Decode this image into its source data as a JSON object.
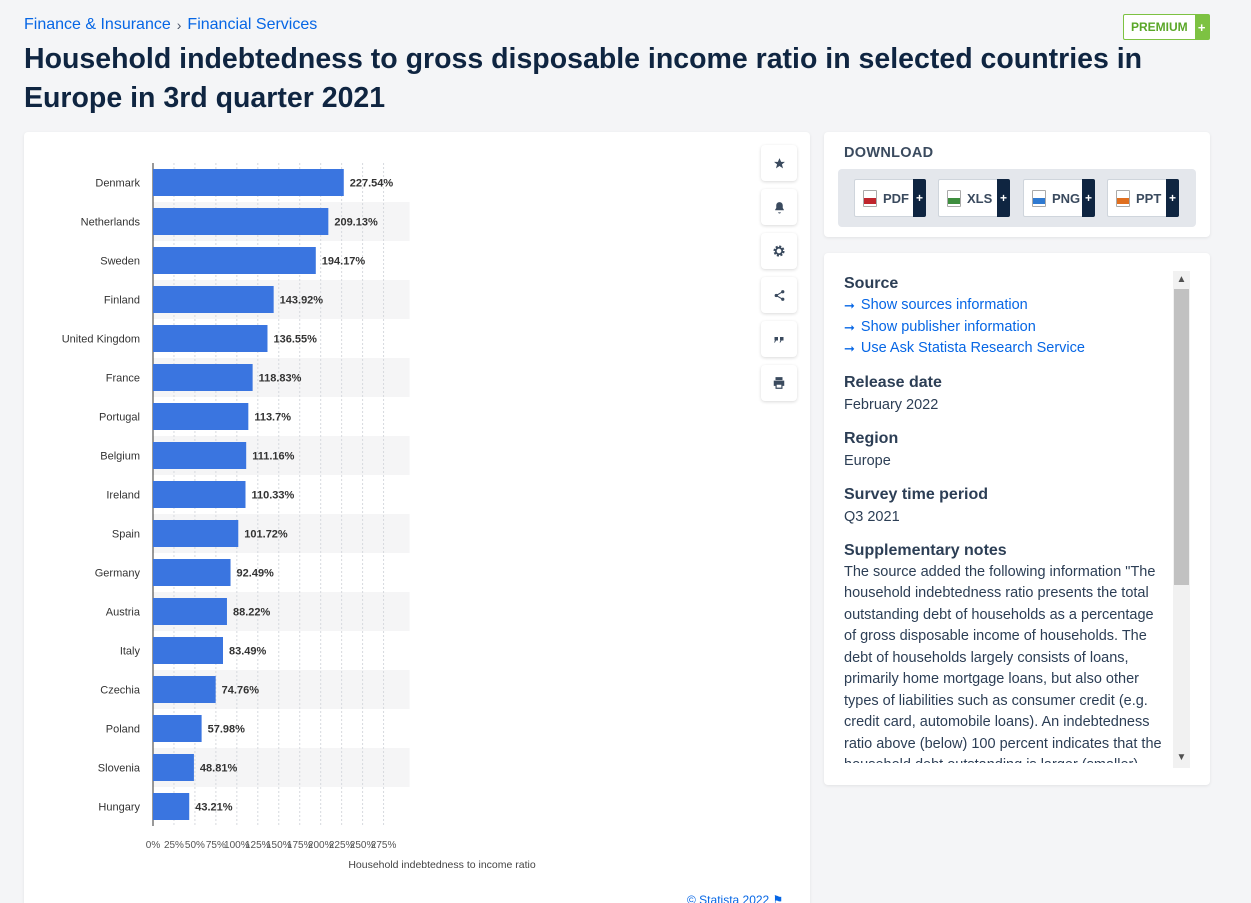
{
  "breadcrumb": {
    "item1": "Finance & Insurance",
    "separator": "›",
    "item2": "Financial Services"
  },
  "badge": {
    "label": "PREMIUM",
    "plus": "+"
  },
  "title": "Household indebtedness to gross disposable income ratio in selected countries in Europe in 3rd quarter 2021",
  "toolbar": {
    "icons": [
      "star-icon",
      "bell-icon",
      "gear-icon",
      "share-icon",
      "quote-icon",
      "print-icon"
    ]
  },
  "download": {
    "title": "DOWNLOAD",
    "buttons": [
      {
        "label": "PDF",
        "color": "#c0262d"
      },
      {
        "label": "XLS",
        "color": "#3e8e3e"
      },
      {
        "label": "PNG",
        "color": "#2f7ad1"
      },
      {
        "label": "PPT",
        "color": "#e06f1f"
      }
    ],
    "plus": "+"
  },
  "info": {
    "source_heading": "Source",
    "links": [
      "Show sources information",
      "Show publisher information",
      "Use Ask Statista Research Service"
    ],
    "release_heading": "Release date",
    "release_value": "February 2022",
    "region_heading": "Region",
    "region_value": "Europe",
    "survey_heading": "Survey time period",
    "survey_value": "Q3 2021",
    "notes_heading": "Supplementary notes",
    "notes_text": "The source added the following information \"The household indebtedness ratio presents the total outstanding debt of households as a percentage of gross disposable income of households. The debt of households largely consists of loans, primarily home mortgage loans, but also other types of liabilities such as consumer credit (e.g. credit card, automobile loans). An indebtedness ratio above (below) 100 percent indicates that the household debt outstanding is larger (smaller)"
  },
  "copyright": "© Statista 2022 ⚑",
  "colors": {
    "bar": "#3a75e0",
    "accent": "#0666e5",
    "premium": "#7dc242"
  },
  "chart_data": {
    "type": "bar",
    "orientation": "horizontal",
    "categories": [
      "Denmark",
      "Netherlands",
      "Sweden",
      "Finland",
      "United Kingdom",
      "France",
      "Portugal",
      "Belgium",
      "Ireland",
      "Spain",
      "Germany",
      "Austria",
      "Italy",
      "Czechia",
      "Poland",
      "Slovenia",
      "Hungary"
    ],
    "values": [
      227.54,
      209.13,
      194.17,
      143.92,
      136.55,
      118.83,
      113.7,
      111.16,
      110.33,
      101.72,
      92.49,
      88.22,
      83.49,
      74.76,
      57.98,
      48.81,
      43.21
    ],
    "value_labels": [
      "227.54%",
      "209.13%",
      "194.17%",
      "143.92%",
      "136.55%",
      "118.83%",
      "113.7%",
      "111.16%",
      "110.33%",
      "101.72%",
      "92.49%",
      "88.22%",
      "83.49%",
      "74.76%",
      "57.98%",
      "48.81%",
      "43.21%"
    ],
    "xticks": [
      0,
      25,
      50,
      75,
      100,
      125,
      150,
      175,
      200,
      225,
      250,
      275
    ],
    "xtick_labels": [
      "0%",
      "25%",
      "50%",
      "75%",
      "100%",
      "125%",
      "150%",
      "175%",
      "200%",
      "225%",
      "250%",
      "275%"
    ],
    "xlim": [
      0,
      275
    ],
    "xlabel": "Household indebtedness to income ratio",
    "ylabel": "",
    "grid": true
  }
}
